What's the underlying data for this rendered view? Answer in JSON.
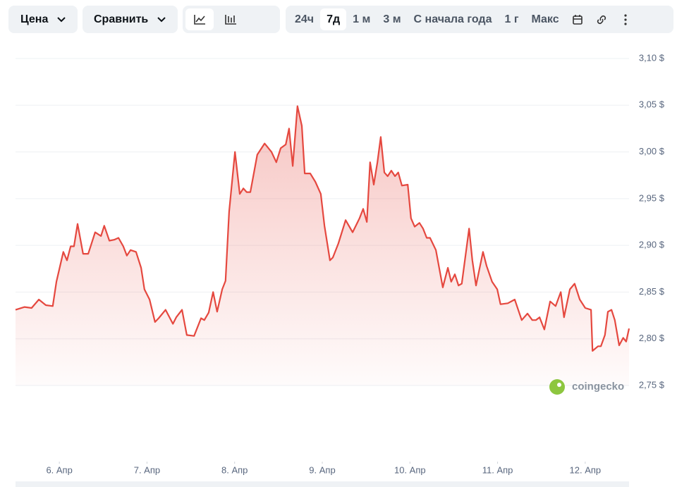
{
  "toolbar": {
    "price": "Цена",
    "compare": "Сравнить",
    "ranges": [
      "24ч",
      "7д",
      "1 м",
      "3 м",
      "С начала года",
      "1 г",
      "Макс"
    ]
  },
  "watermark": "coingecko",
  "chart_data": {
    "type": "line",
    "color": "#e5483f",
    "grid": true,
    "x": [
      0.0,
      2.5,
      4.4,
      6.4,
      8.3,
      10.2,
      11.2,
      13.1,
      14.1,
      15.1,
      16.0,
      17.0,
      18.5,
      19.9,
      21.8,
      23.4,
      24.3,
      25.7,
      27.0,
      28.2,
      29.5,
      30.5,
      31.5,
      33.0,
      34.4,
      35.3,
      36.7,
      38.2,
      39.2,
      41.1,
      43.1,
      44.0,
      45.6,
      46.9,
      48.9,
      50.8,
      51.7,
      52.9,
      54.1,
      55.2,
      56.6,
      57.5,
      58.5,
      60.1,
      61.4,
      62.4,
      63.3,
      64.3,
      66.2,
      68.2,
      70.1,
      71.4,
      72.6,
      74.0,
      74.9,
      75.9,
      77.2,
      78.4,
      79.2,
      80.7,
      82.1,
      83.6,
      84.6,
      86.1,
      86.9,
      88.4,
      90.4,
      92.3,
      94.2,
      95.2,
      96.2,
      97.1,
      98.1,
      99.1,
      100.0,
      101.0,
      101.9,
      102.9,
      103.9,
      104.8,
      105.8,
      107.4,
      108.3,
      109.3,
      110.6,
      111.6,
      112.6,
      113.5,
      115.1,
      117.0,
      118.4,
      119.3,
      120.3,
      121.3,
      122.2,
      124.2,
      125.1,
      126.1,
      128.0,
      129.0,
      130.5,
      131.9,
      132.8,
      134.8,
      136.7,
      138.6,
      140.2,
      141.5,
      142.5,
      143.5,
      144.8,
      146.4,
      147.9,
      149.3,
      150.2,
      151.8,
      153.1,
      154.5,
      156.0,
      157.6,
      158.0,
      159.5,
      160.3,
      161.4,
      162.2,
      163.2,
      164.1,
      165.3,
      166.4,
      167.2,
      168.0
    ],
    "values": [
      2.831,
      2.834,
      2.833,
      2.842,
      2.836,
      2.835,
      2.861,
      2.893,
      2.884,
      2.899,
      2.899,
      2.923,
      2.891,
      2.891,
      2.914,
      2.91,
      2.921,
      2.905,
      2.906,
      2.908,
      2.899,
      2.889,
      2.895,
      2.893,
      2.876,
      2.853,
      2.842,
      2.818,
      2.822,
      2.831,
      2.816,
      2.823,
      2.831,
      2.804,
      2.803,
      2.822,
      2.82,
      2.828,
      2.85,
      2.829,
      2.853,
      2.862,
      2.936,
      3.0,
      2.955,
      2.961,
      2.957,
      2.957,
      2.997,
      3.009,
      3.0,
      2.989,
      3.004,
      3.008,
      3.025,
      2.985,
      3.049,
      3.028,
      2.977,
      2.977,
      2.968,
      2.955,
      2.921,
      2.884,
      2.887,
      2.902,
      2.927,
      2.914,
      2.929,
      2.939,
      2.925,
      2.989,
      2.965,
      2.989,
      3.016,
      2.978,
      2.974,
      2.98,
      2.974,
      2.978,
      2.964,
      2.965,
      2.929,
      2.92,
      2.924,
      2.918,
      2.908,
      2.908,
      2.895,
      2.855,
      2.876,
      2.861,
      2.869,
      2.857,
      2.859,
      2.918,
      2.884,
      2.857,
      2.893,
      2.878,
      2.861,
      2.853,
      2.837,
      2.838,
      2.842,
      2.82,
      2.827,
      2.82,
      2.82,
      2.823,
      2.81,
      2.84,
      2.835,
      2.85,
      2.823,
      2.853,
      2.859,
      2.842,
      2.833,
      2.831,
      2.787,
      2.792,
      2.792,
      2.804,
      2.829,
      2.831,
      2.82,
      2.793,
      2.801,
      2.797,
      2.811
    ],
    "xlim": [
      0,
      168
    ],
    "xticks": [
      {
        "value": 12,
        "label": "6. Апр"
      },
      {
        "value": 36,
        "label": "7. Апр"
      },
      {
        "value": 60,
        "label": "8. Апр"
      },
      {
        "value": 84,
        "label": "9. Апр"
      },
      {
        "value": 108,
        "label": "10. Апр"
      },
      {
        "value": 132,
        "label": "11. Апр"
      },
      {
        "value": 156,
        "label": "12. Апр"
      }
    ],
    "ylim": [
      2.75,
      3.1
    ],
    "yticks": [
      {
        "value": 2.75,
        "label": "2,75 $"
      },
      {
        "value": 2.8,
        "label": "2,80 $"
      },
      {
        "value": 2.85,
        "label": "2,85 $"
      },
      {
        "value": 2.9,
        "label": "2,90 $"
      },
      {
        "value": 2.95,
        "label": "2,95 $"
      },
      {
        "value": 3.0,
        "label": "3,00 $"
      },
      {
        "value": 3.05,
        "label": "3,05 $"
      },
      {
        "value": 3.1,
        "label": "3,10 $"
      }
    ]
  }
}
